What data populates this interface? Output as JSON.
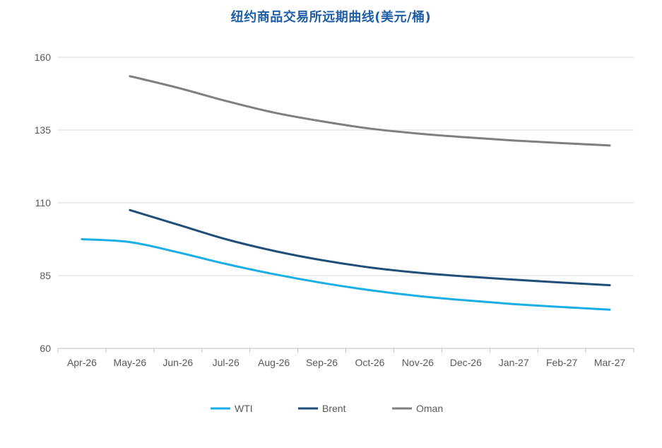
{
  "chart_data": {
    "type": "line",
    "title": "纽约商品交易所远期曲线(美元/桶)",
    "xlabel": "",
    "ylabel": "",
    "categories": [
      "Apr-26",
      "May-26",
      "Jun-26",
      "Jul-26",
      "Aug-26",
      "Sep-26",
      "Oct-26",
      "Nov-26",
      "Dec-26",
      "Jan-27",
      "Feb-27",
      "Mar-27"
    ],
    "yticks": [
      60,
      85,
      110,
      135,
      160
    ],
    "ylim": [
      60,
      160
    ],
    "grid": true,
    "legend_position": "bottom",
    "series": [
      {
        "name": "WTI",
        "color": "#19aee6",
        "values": [
          97.5,
          96.5,
          93,
          89,
          85.5,
          82.5,
          80,
          78,
          76.5,
          75.2,
          74.2,
          73.3
        ]
      },
      {
        "name": "Brent",
        "color": "#1f4e79",
        "values": [
          null,
          107.5,
          102.5,
          97.5,
          93.5,
          90.3,
          87.8,
          86,
          84.7,
          83.6,
          82.6,
          81.7
        ]
      },
      {
        "name": "Oman",
        "color": "#7f7f7f",
        "values": [
          null,
          153.5,
          149.5,
          145,
          141,
          138,
          135.5,
          133.8,
          132.5,
          131.4,
          130.5,
          129.7
        ]
      }
    ]
  }
}
